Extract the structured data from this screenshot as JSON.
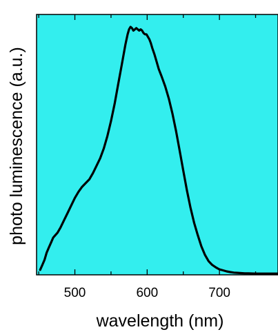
{
  "chart_data": {
    "type": "line",
    "xlabel": "wavelength (nm)",
    "ylabel": "photo luminescence (a.u.)",
    "xlim": [
      447,
      781
    ],
    "ylim": [
      0,
      1.05
    ],
    "xticks": [
      500,
      600,
      700
    ],
    "tick_labels": [
      "500",
      "600",
      "700"
    ],
    "grid": false,
    "plot_background": "#33eeee",
    "series": [
      {
        "color": "#000000",
        "x": [
          452,
          455,
          458,
          461,
          464,
          467,
          470,
          473,
          476,
          480,
          485,
          490,
          495,
          500,
          505,
          510,
          515,
          520,
          525,
          530,
          535,
          540,
          545,
          550,
          555,
          560,
          565,
          570,
          573,
          575,
          577,
          579,
          581,
          583,
          585,
          587,
          589,
          591,
          593,
          595,
          597,
          599,
          601,
          603,
          605,
          607,
          610,
          613,
          616,
          620,
          625,
          630,
          635,
          640,
          645,
          650,
          655,
          660,
          665,
          670,
          675,
          680,
          685,
          690,
          695,
          700,
          705,
          710,
          715,
          720,
          725,
          730,
          735,
          740,
          750,
          760,
          770,
          780
        ],
        "y": [
          0.02,
          0.04,
          0.06,
          0.09,
          0.11,
          0.13,
          0.15,
          0.16,
          0.17,
          0.19,
          0.22,
          0.25,
          0.28,
          0.31,
          0.335,
          0.355,
          0.37,
          0.385,
          0.41,
          0.44,
          0.47,
          0.51,
          0.56,
          0.62,
          0.69,
          0.77,
          0.85,
          0.93,
          0.97,
          0.99,
          1.0,
          0.995,
          0.985,
          0.99,
          0.995,
          0.99,
          0.985,
          0.99,
          0.985,
          0.975,
          0.97,
          0.97,
          0.96,
          0.95,
          0.935,
          0.915,
          0.89,
          0.86,
          0.83,
          0.8,
          0.76,
          0.71,
          0.65,
          0.58,
          0.5,
          0.42,
          0.34,
          0.27,
          0.21,
          0.16,
          0.115,
          0.08,
          0.055,
          0.04,
          0.03,
          0.022,
          0.018,
          0.014,
          0.011,
          0.009,
          0.008,
          0.007,
          0.006,
          0.006,
          0.005,
          0.005,
          0.005,
          0.005
        ]
      }
    ]
  }
}
